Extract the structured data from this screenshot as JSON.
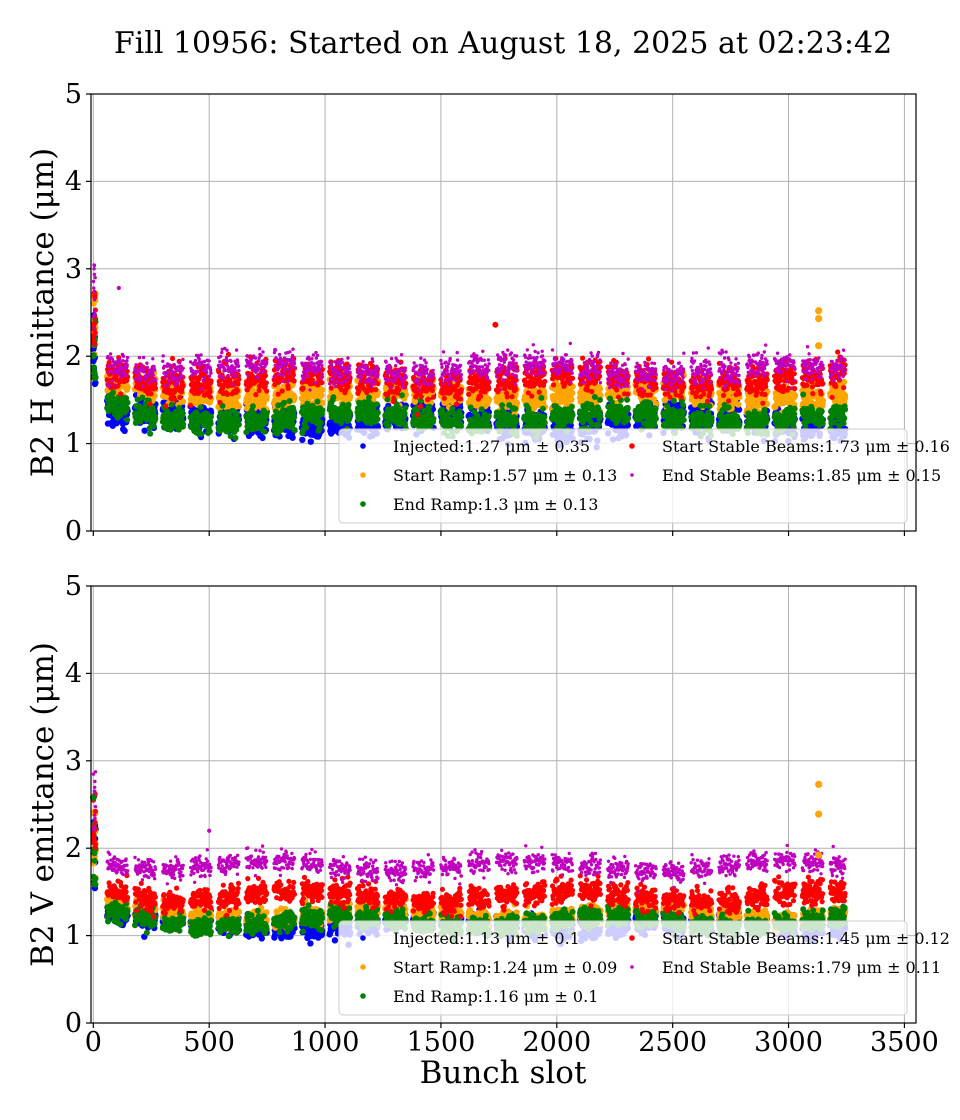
{
  "figure": {
    "title": "Fill 10956: Started on August 18, 2025 at 02:23:42",
    "xlabel": "Bunch slot"
  },
  "chart_data": [
    {
      "type": "scatter",
      "ylabel": "B2 H emittance (μm)",
      "xlim": [
        -10,
        3550
      ],
      "ylim": [
        0,
        5
      ],
      "x_ticks": [
        0,
        500,
        1000,
        1500,
        2000,
        2500,
        3000,
        3500
      ],
      "y_ticks": [
        0,
        1,
        2,
        3,
        4,
        5
      ],
      "grid": true,
      "legend_position": "lower-right",
      "series": [
        {
          "name": "Injected",
          "label": "Injected:1.27 μm ± 0.35",
          "mean": 1.27,
          "std": 0.35,
          "color": "#0000ff"
        },
        {
          "name": "Start Ramp",
          "label": "Start Ramp:1.57 μm ± 0.13",
          "mean": 1.57,
          "std": 0.13,
          "color": "#ffa500"
        },
        {
          "name": "End Ramp",
          "label": "End Ramp:1.3 μm ± 0.13",
          "mean": 1.3,
          "std": 0.13,
          "color": "#008000"
        },
        {
          "name": "Start Stable Beams",
          "label": "Start Stable Beams:1.73 μm ± 0.16",
          "mean": 1.73,
          "std": 0.16,
          "color": "#ff0000"
        },
        {
          "name": "End Stable Beams",
          "label": "End Stable Beams:1.85 μm ± 0.15",
          "mean": 1.85,
          "std": 0.15,
          "color": "#bf00bf"
        }
      ],
      "outliers": [
        {
          "series": "Start Ramp",
          "x": 3130,
          "y": 2.52
        },
        {
          "series": "Start Ramp",
          "x": 3130,
          "y": 2.43
        },
        {
          "series": "Start Ramp",
          "x": 3130,
          "y": 2.12
        },
        {
          "series": "End Stable Beams",
          "x": 110,
          "y": 2.78
        },
        {
          "series": "Start Stable Beams",
          "x": 1735,
          "y": 2.36
        }
      ]
    },
    {
      "type": "scatter",
      "ylabel": "B2 V emittance (μm)",
      "xlim": [
        -10,
        3550
      ],
      "ylim": [
        0,
        5
      ],
      "x_ticks": [
        0,
        500,
        1000,
        1500,
        2000,
        2500,
        3000,
        3500
      ],
      "y_ticks": [
        0,
        1,
        2,
        3,
        4,
        5
      ],
      "grid": true,
      "legend_position": "lower-right",
      "series": [
        {
          "name": "Injected",
          "label": "Injected:1.13 μm ± 0.1",
          "mean": 1.13,
          "std": 0.1,
          "color": "#0000ff"
        },
        {
          "name": "Start Ramp",
          "label": "Start Ramp:1.24 μm ± 0.09",
          "mean": 1.24,
          "std": 0.09,
          "color": "#ffa500"
        },
        {
          "name": "End Ramp",
          "label": "End Ramp:1.16 μm ± 0.1",
          "mean": 1.16,
          "std": 0.1,
          "color": "#008000"
        },
        {
          "name": "Start Stable Beams",
          "label": "Start Stable Beams:1.45 μm ± 0.12",
          "mean": 1.45,
          "std": 0.12,
          "color": "#ff0000"
        },
        {
          "name": "End Stable Beams",
          "label": "End Stable Beams:1.79 μm ± 0.11",
          "mean": 1.79,
          "std": 0.11,
          "color": "#bf00bf"
        }
      ],
      "outliers": [
        {
          "series": "Start Ramp",
          "x": 3130,
          "y": 2.73
        },
        {
          "series": "Start Ramp",
          "x": 3130,
          "y": 2.39
        },
        {
          "series": "Start Ramp",
          "x": 3130,
          "y": 1.92
        },
        {
          "series": "End Ramp",
          "x": 0,
          "y": 2.58
        },
        {
          "series": "End Stable Beams",
          "x": 500,
          "y": 2.2
        }
      ]
    }
  ]
}
